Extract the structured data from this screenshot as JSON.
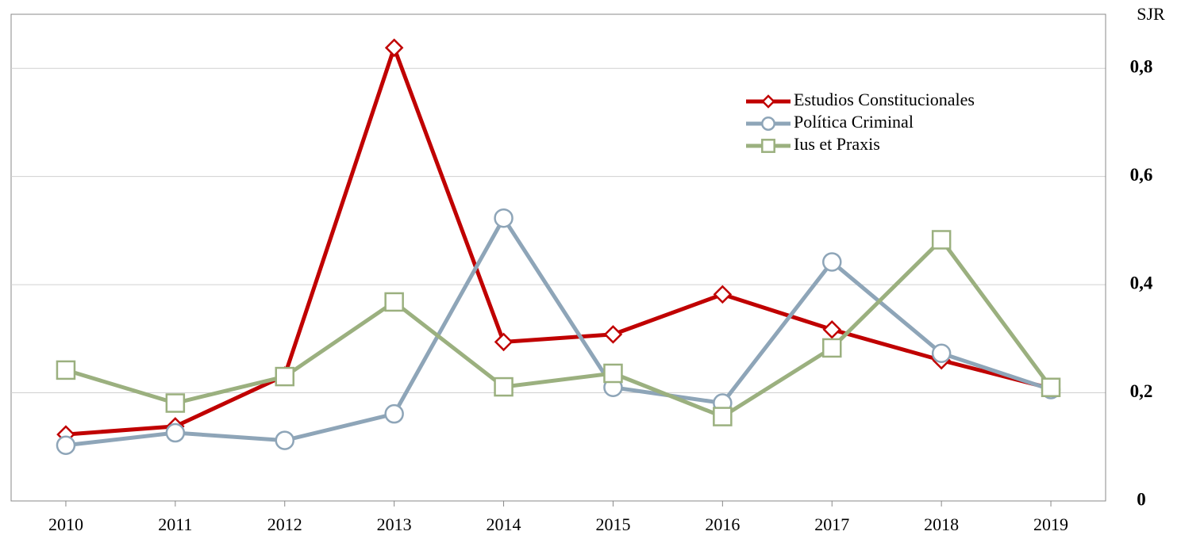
{
  "chart_data": {
    "type": "line",
    "y_axis_label": "SJR",
    "categories": [
      "2010",
      "2011",
      "2012",
      "2013",
      "2014",
      "2015",
      "2016",
      "2017",
      "2018",
      "2019"
    ],
    "series": [
      {
        "name": "Estudios Constitucionales",
        "color": "#c00000",
        "marker": "diamond",
        "values": [
          0.123,
          0.138,
          0.232,
          0.838,
          0.294,
          0.308,
          0.382,
          0.317,
          0.26,
          0.208
        ]
      },
      {
        "name": "Política Criminal",
        "color": "#8ea5b8",
        "marker": "circle",
        "values": [
          0.103,
          0.126,
          0.112,
          0.161,
          0.523,
          0.21,
          0.181,
          0.442,
          0.273,
          0.206
        ]
      },
      {
        "name": "Ius et Praxis",
        "color": "#9bb07f",
        "marker": "square",
        "values": [
          0.242,
          0.181,
          0.23,
          0.368,
          0.211,
          0.236,
          0.156,
          0.283,
          0.483,
          0.21
        ]
      }
    ],
    "ylim": [
      0,
      0.9
    ],
    "yticks": [
      {
        "value": 0,
        "label": "0"
      },
      {
        "value": 0.2,
        "label": "0,2"
      },
      {
        "value": 0.4,
        "label": "0,4"
      },
      {
        "value": 0.6,
        "label": "0,6"
      },
      {
        "value": 0.8,
        "label": "0,8"
      }
    ],
    "y_axis_side": "right",
    "grid": true,
    "legend": "upper right"
  }
}
